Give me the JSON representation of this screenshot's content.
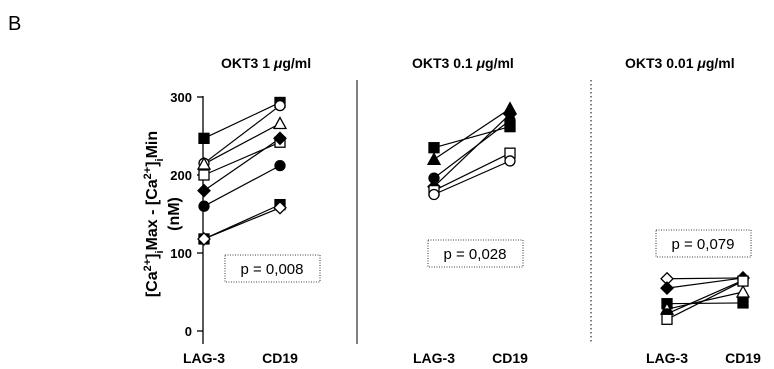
{
  "figure": {
    "panel_label": "B",
    "y_axis_label": "[Ca2+]iMax - [Ca2+]iMin (nM)",
    "y_ticks": [
      "0",
      "100",
      "200",
      "300"
    ]
  },
  "chart_data": [
    {
      "type": "line",
      "title": "OKT3 1 μg/ml",
      "title_parts": {
        "prefix": "OKT3 1 ",
        "mu": "μ",
        "suffix": "g/ml"
      },
      "categories": [
        "LAG-3",
        "CD19"
      ],
      "ylim": [
        0,
        300
      ],
      "ylabel": "[Ca2+]iMax - [Ca2+]iMin (nM)",
      "p_value": "p = 0,008",
      "series": [
        {
          "values": [
            247,
            293
          ],
          "marker": "square",
          "fill": "filled"
        },
        {
          "values": [
            215,
            289
          ],
          "marker": "circle",
          "fill": "open"
        },
        {
          "values": [
            214,
            266
          ],
          "marker": "triangle",
          "fill": "open"
        },
        {
          "values": [
            200,
            242
          ],
          "marker": "square",
          "fill": "open"
        },
        {
          "values": [
            180,
            247
          ],
          "marker": "diamond",
          "fill": "filled"
        },
        {
          "values": [
            160,
            212
          ],
          "marker": "circle",
          "fill": "filled"
        },
        {
          "values": [
            118,
            162
          ],
          "marker": "square",
          "fill": "filled"
        },
        {
          "values": [
            118,
            158
          ],
          "marker": "diamond",
          "fill": "open"
        }
      ]
    },
    {
      "type": "line",
      "title": "OKT3 0.1 μg/ml",
      "title_parts": {
        "prefix": "OKT3 0.1 ",
        "mu": "μ",
        "suffix": "g/ml"
      },
      "categories": [
        "LAG-3",
        "CD19"
      ],
      "ylim": [
        0,
        300
      ],
      "p_value": "p = 0,028",
      "series": [
        {
          "values": [
            235,
            262
          ],
          "marker": "square",
          "fill": "filled"
        },
        {
          "values": [
            220,
            285
          ],
          "marker": "triangle",
          "fill": "filled"
        },
        {
          "values": [
            196,
            270
          ],
          "marker": "circle",
          "fill": "filled"
        },
        {
          "values": [
            185,
            278
          ],
          "marker": "diamond",
          "fill": "filled"
        },
        {
          "values": [
            180,
            228
          ],
          "marker": "square",
          "fill": "open"
        },
        {
          "values": [
            175,
            218
          ],
          "marker": "circle",
          "fill": "open"
        }
      ]
    },
    {
      "type": "line",
      "title": "OKT3 0.01 μg/ml",
      "title_parts": {
        "prefix": "OKT3 0.01 ",
        "mu": "μ",
        "suffix": "g/ml"
      },
      "categories": [
        "LAG-3",
        "CD19"
      ],
      "ylim": [
        0,
        300
      ],
      "p_value": "p = 0,079",
      "series": [
        {
          "values": [
            67,
            68
          ],
          "marker": "diamond",
          "fill": "open"
        },
        {
          "values": [
            55,
            68
          ],
          "marker": "diamond",
          "fill": "filled"
        },
        {
          "values": [
            35,
            36
          ],
          "marker": "square",
          "fill": "filled"
        },
        {
          "values": [
            28,
            50
          ],
          "marker": "triangle",
          "fill": "open"
        },
        {
          "values": [
            22,
            65
          ],
          "marker": "circle",
          "fill": "filled"
        },
        {
          "values": [
            15,
            64
          ],
          "marker": "square",
          "fill": "open"
        }
      ]
    }
  ]
}
